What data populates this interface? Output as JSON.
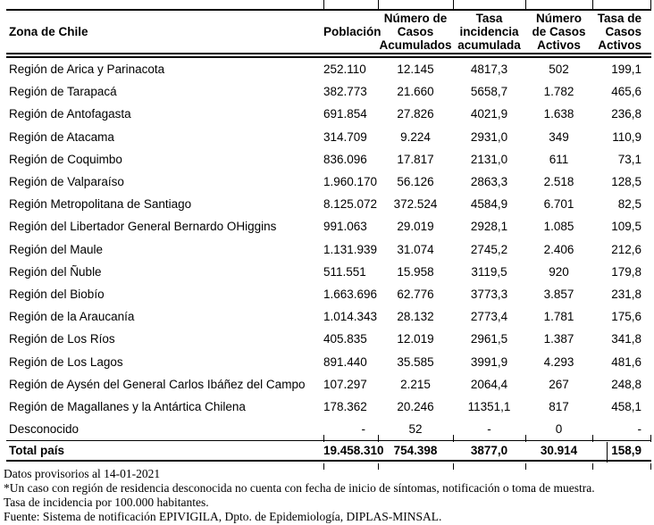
{
  "table": {
    "columns": [
      "Zona de Chile",
      "Población",
      "Número de\nCasos\nAcumulados",
      "Tasa\nincidencia\nacumulada",
      "Número\nde Casos\nActivos",
      "Tasa de\nCasos\nActivos"
    ],
    "rows": [
      [
        "Región de Arica y Parinacota",
        "252.110",
        "12.145",
        "4817,3",
        "502",
        "199,1"
      ],
      [
        "Región de Tarapacá",
        "382.773",
        "21.660",
        "5658,7",
        "1.782",
        "465,6"
      ],
      [
        "Región de Antofagasta",
        "691.854",
        "27.826",
        "4021,9",
        "1.638",
        "236,8"
      ],
      [
        "Región de Atacama",
        "314.709",
        "9.224",
        "2931,0",
        "349",
        "110,9"
      ],
      [
        "Región de Coquimbo",
        "836.096",
        "17.817",
        "2131,0",
        "611",
        "73,1"
      ],
      [
        "Región de Valparaíso",
        "1.960.170",
        "56.126",
        "2863,3",
        "2.518",
        "128,5"
      ],
      [
        "Región Metropolitana de Santiago",
        "8.125.072",
        "372.524",
        "4584,9",
        "6.701",
        "82,5"
      ],
      [
        "Región del Libertador General Bernardo OHiggins",
        "991.063",
        "29.019",
        "2928,1",
        "1.085",
        "109,5"
      ],
      [
        "Región del Maule",
        "1.131.939",
        "31.074",
        "2745,2",
        "2.406",
        "212,6"
      ],
      [
        "Región del Ñuble",
        "511.551",
        "15.958",
        "3119,5",
        "920",
        "179,8"
      ],
      [
        "Región del Biobío",
        "1.663.696",
        "62.776",
        "3773,3",
        "3.857",
        "231,8"
      ],
      [
        "Región de la Araucanía",
        "1.014.343",
        "28.132",
        "2773,4",
        "1.781",
        "175,6"
      ],
      [
        "Región de Los Ríos",
        "405.835",
        "12.019",
        "2961,5",
        "1.387",
        "341,8"
      ],
      [
        "Región de Los Lagos",
        "891.440",
        "35.585",
        "3991,9",
        "4.293",
        "481,6"
      ],
      [
        "Región de Aysén del General Carlos Ibáñez del Campo",
        "107.297",
        "2.215",
        "2064,4",
        "267",
        "248,8"
      ],
      [
        "Región de Magallanes y la Antártica Chilena",
        "178.362",
        "20.246",
        "11351,1",
        "817",
        "458,1"
      ],
      [
        "Desconocido",
        "-",
        "52",
        "-",
        "0",
        "-"
      ]
    ],
    "total_row": [
      "Total país",
      "19.458.310",
      "754.398",
      "3877,0",
      "30.914",
      "158,9"
    ]
  },
  "footnotes": [
    "Datos provisorios al 14-01-2021",
    "*Un caso con región de residencia desconocida no cuenta con fecha de inicio de síntomas, notificación o toma de muestra.",
    "Tasa de incidencia por 100.000 habitantes.",
    "Fuente: Sistema de notificación EPIVIGILA, Dpto. de Epidemiología, DIPLAS-MINSAL."
  ]
}
